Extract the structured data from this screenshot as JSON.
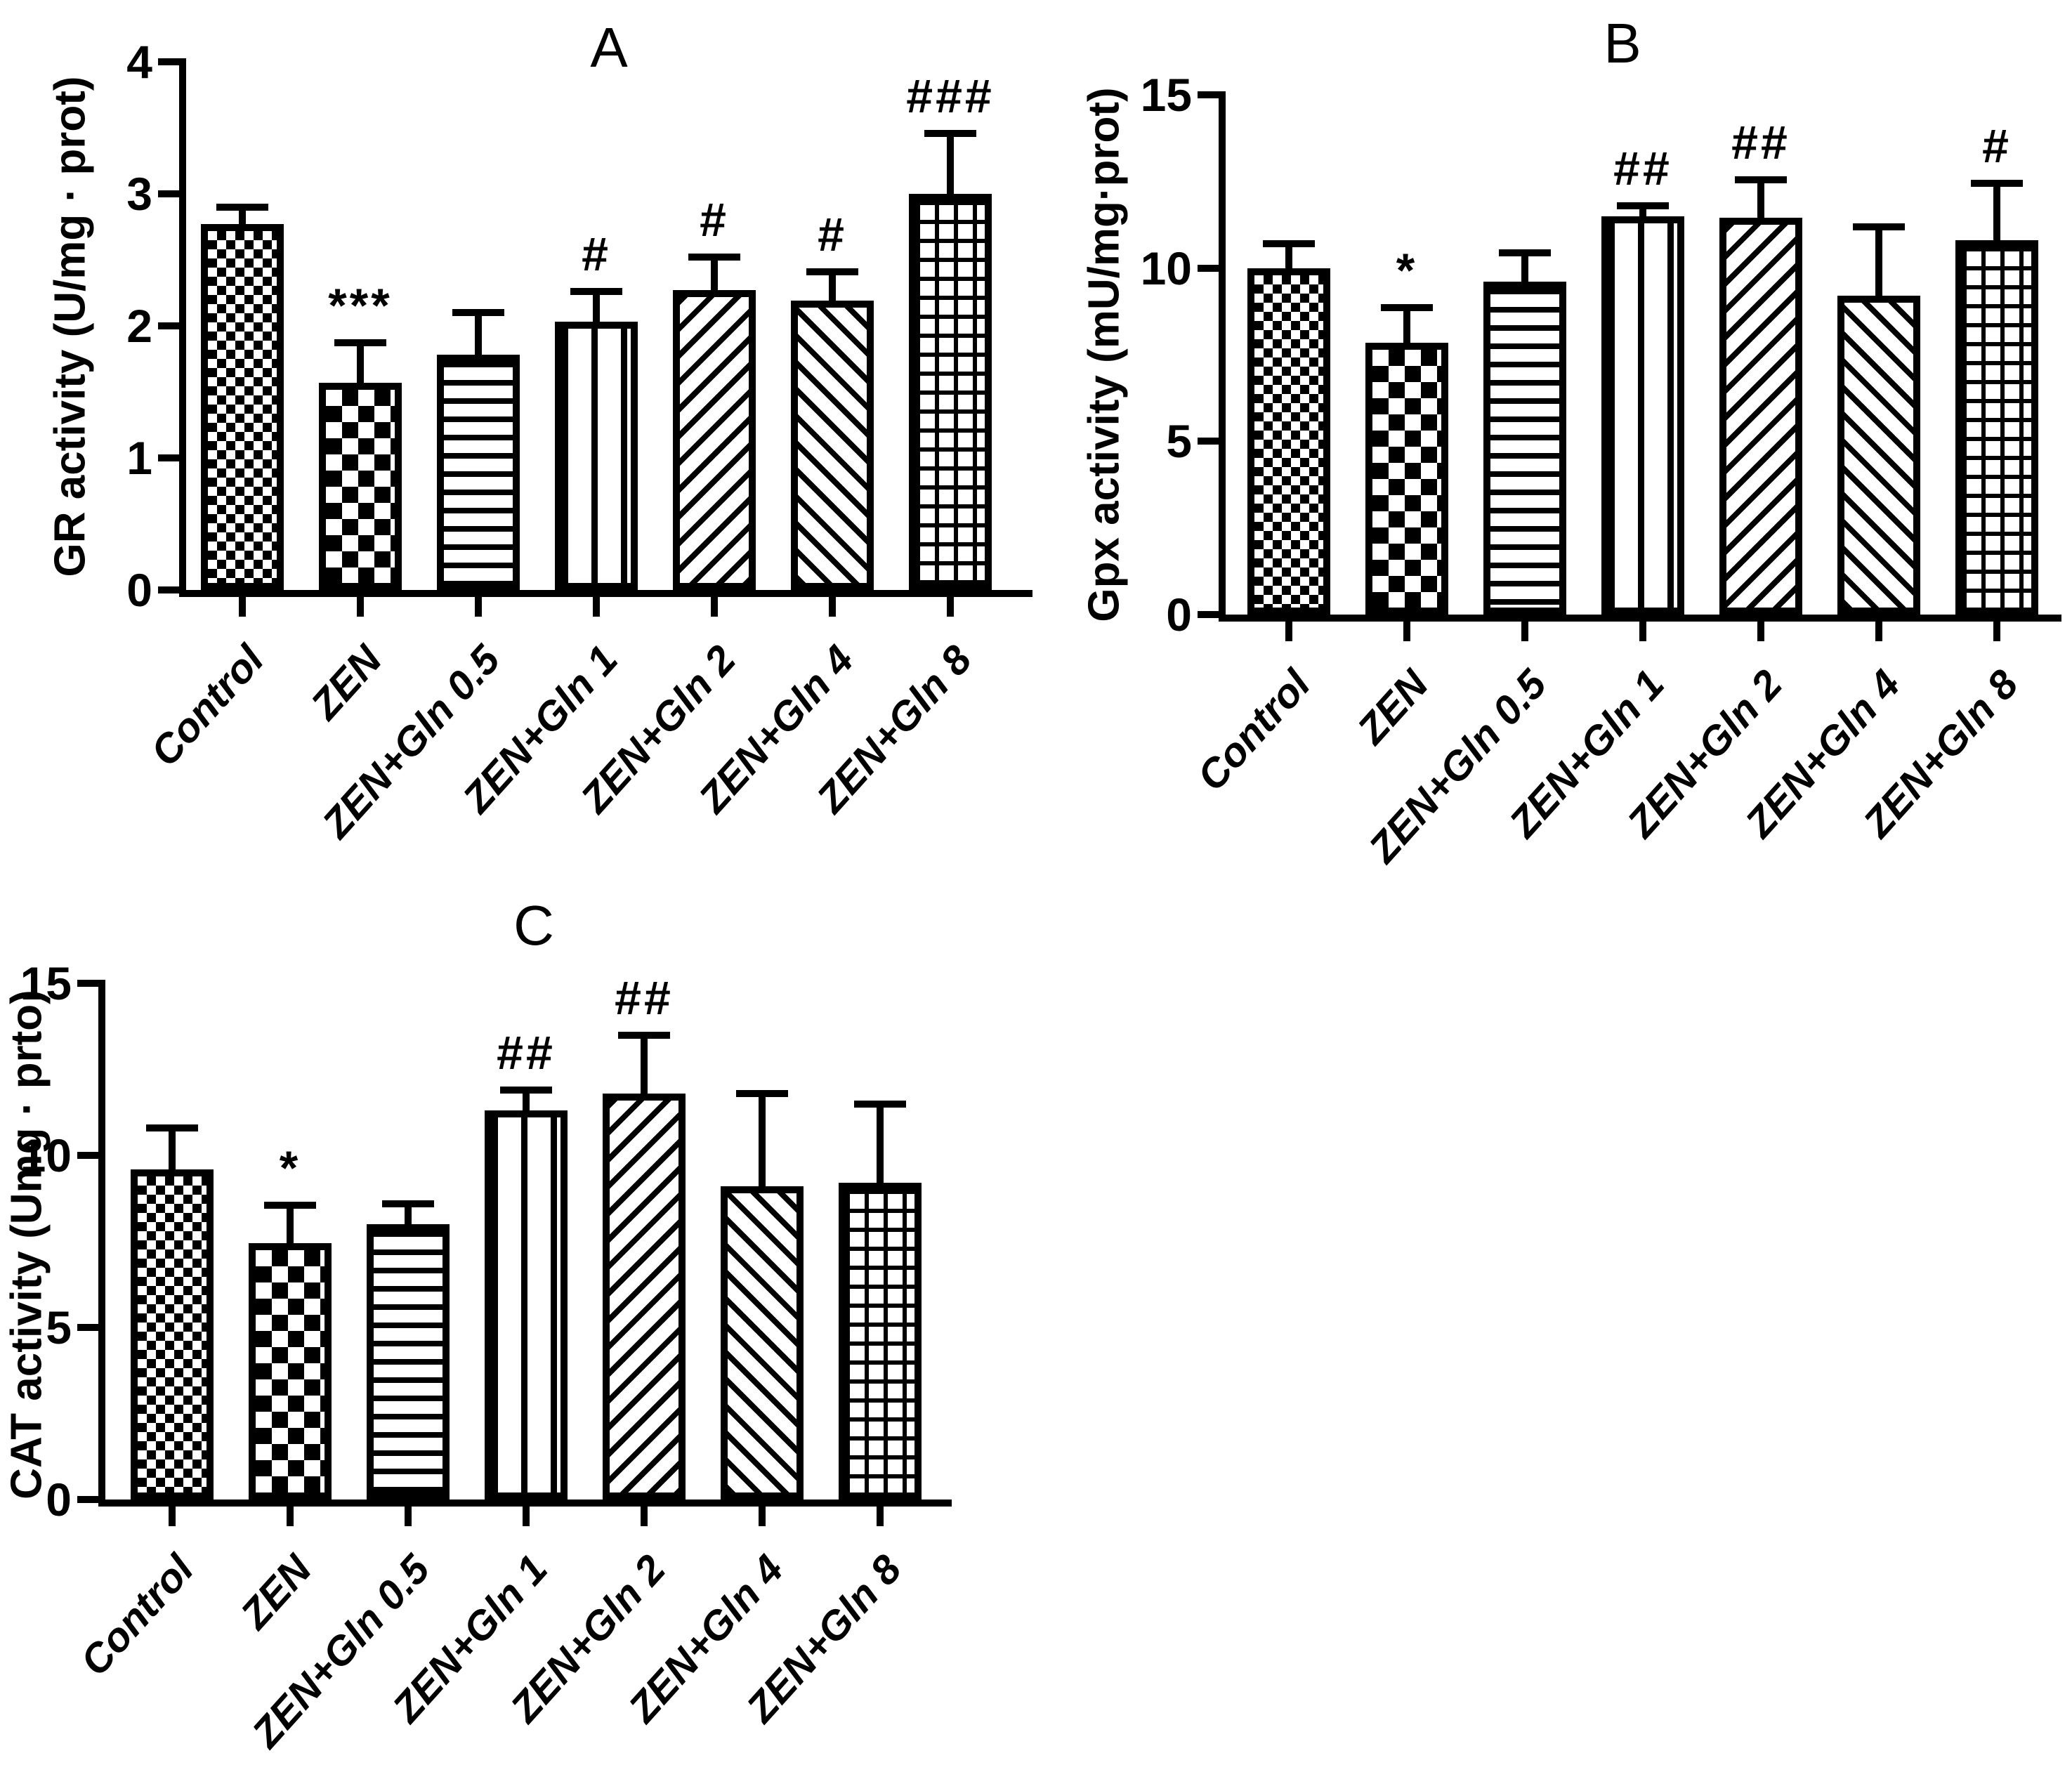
{
  "figure": {
    "background": "#ffffff",
    "stroke_color": "#000000"
  },
  "chart_data": [
    {
      "panel": "A",
      "type": "bar",
      "title": "A",
      "ylabel": "GR activity (U/mg · prot)",
      "xlabel": "",
      "ylim": [
        0,
        4
      ],
      "yticks": [
        0,
        1,
        2,
        3,
        4
      ],
      "grid": false,
      "legend": "none",
      "categories": [
        "Control",
        "ZEN",
        "ZEN+Gln 0.5",
        "ZEN+Gln 1",
        "ZEN+Gln 2",
        "ZEN+Gln 4",
        "ZEN+Gln 8"
      ],
      "values": [
        2.77,
        1.57,
        1.78,
        2.03,
        2.27,
        2.19,
        3.0
      ],
      "errors": [
        0.13,
        0.3,
        0.32,
        0.23,
        0.25,
        0.22,
        0.46
      ],
      "significance": [
        "",
        "***",
        "",
        "#",
        "#",
        "#",
        "###"
      ],
      "bar_patterns": [
        "checker-fine",
        "checker-coarse",
        "hlines",
        "vlines",
        "diag-up",
        "diag-down",
        "grid"
      ],
      "bar_fill": "#ffffff",
      "bar_stroke": "#000000"
    },
    {
      "panel": "B",
      "type": "bar",
      "title": "B",
      "ylabel": "Gpx activity (mU/mg·prot)",
      "xlabel": "",
      "ylim": [
        0,
        15
      ],
      "yticks": [
        0,
        5,
        10,
        15
      ],
      "grid": false,
      "legend": "none",
      "categories": [
        "Control",
        "ZEN",
        "ZEN+Gln 0.5",
        "ZEN+Gln 1",
        "ZEN+Gln 2",
        "ZEN+Gln 4",
        "ZEN+Gln 8"
      ],
      "values": [
        10.0,
        7.85,
        9.6,
        11.5,
        11.45,
        9.2,
        10.8
      ],
      "errors": [
        0.7,
        1.0,
        0.85,
        0.3,
        1.1,
        2.0,
        1.65
      ],
      "significance": [
        "",
        "*",
        "",
        "##",
        "##",
        "",
        "#"
      ],
      "bar_patterns": [
        "checker-fine",
        "checker-coarse",
        "hlines",
        "vlines",
        "diag-up",
        "diag-down",
        "grid"
      ],
      "bar_fill": "#ffffff",
      "bar_stroke": "#000000"
    },
    {
      "panel": "C",
      "type": "bar",
      "title": "C",
      "ylabel": "CAT activity (Umg · prto)",
      "xlabel": "",
      "ylim": [
        0,
        15
      ],
      "yticks": [
        0,
        5,
        10,
        15
      ],
      "grid": false,
      "legend": "none",
      "categories": [
        "Control",
        "ZEN",
        "ZEN+Gln 0.5",
        "ZEN+Gln 1",
        "ZEN+Gln 2",
        "ZEN+Gln 4",
        "ZEN+Gln 8"
      ],
      "values": [
        9.6,
        7.45,
        8.0,
        11.3,
        11.8,
        9.1,
        9.2
      ],
      "errors": [
        1.2,
        1.1,
        0.6,
        0.6,
        1.7,
        2.7,
        2.3
      ],
      "significance": [
        "",
        "*",
        "",
        "##",
        "##",
        "",
        ""
      ],
      "bar_patterns": [
        "checker-fine",
        "checker-coarse",
        "hlines",
        "vlines",
        "diag-up",
        "diag-down",
        "grid"
      ],
      "bar_fill": "#ffffff",
      "bar_stroke": "#000000"
    }
  ]
}
